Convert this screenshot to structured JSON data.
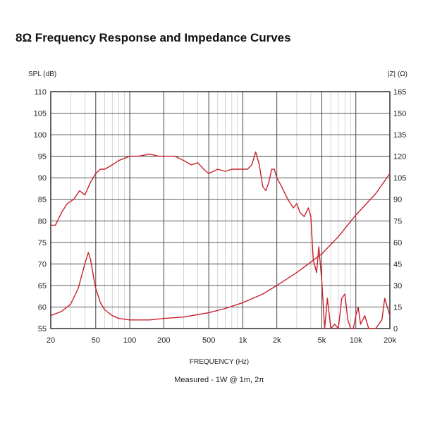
{
  "chart_data": {
    "type": "line",
    "title": "8Ω Frequency Response and Impedance Curves",
    "ylabel_left": "SPL (dB)",
    "ylabel_right": "|Z| (Ω)",
    "xlabel": "FREQUENCY (Hz)",
    "subtitle": "Measured - 1W @ 1m, 2π",
    "x_scale": "log",
    "xlim": [
      20,
      20000
    ],
    "ylim_left": [
      55,
      110
    ],
    "ylim_right": [
      0,
      165
    ],
    "x_ticks": [
      20,
      50,
      100,
      200,
      500,
      1000,
      2000,
      5000,
      10000,
      20000
    ],
    "x_tick_labels": [
      "20",
      "50",
      "100",
      "200",
      "500",
      "1k",
      "2k",
      "5k",
      "10k",
      "20k"
    ],
    "y_left_ticks": [
      110,
      105,
      100,
      95,
      90,
      85,
      80,
      75,
      70,
      65,
      60,
      55
    ],
    "y_right_ticks": [
      165,
      150,
      135,
      120,
      105,
      90,
      75,
      60,
      45,
      30,
      15,
      0
    ],
    "grid": true,
    "line_color": "#c8202c",
    "series": [
      {
        "axis": "left",
        "x": [
          20,
          22,
          25,
          28,
          32,
          36,
          40,
          45,
          50,
          55,
          60,
          70,
          80,
          100,
          120,
          150,
          180,
          200,
          250,
          300,
          350,
          400,
          450,
          500,
          550,
          600,
          700,
          800,
          1000,
          1100,
          1200,
          1300,
          1400,
          1500,
          1600,
          1700,
          1800,
          1900,
          2000,
          2200,
          2500,
          2800,
          3000,
          3200,
          3500,
          3800,
          4000,
          4200,
          4500,
          4700,
          5000,
          5300,
          5600,
          6000,
          6500,
          7000,
          7500,
          8000,
          8500,
          9000,
          9500,
          10000,
          10500,
          11000,
          12000,
          13000,
          15000,
          17000,
          18000,
          19000,
          20000
        ],
        "values": [
          79,
          79,
          82,
          84,
          85,
          87,
          86,
          89,
          91,
          92,
          92,
          93,
          94,
          95,
          95,
          95.5,
          95,
          95,
          95,
          94,
          93,
          93.5,
          92,
          91,
          91.5,
          92,
          91.5,
          92,
          92,
          92,
          93,
          96,
          93,
          88,
          87,
          89,
          92,
          92,
          90,
          88,
          85,
          83,
          84,
          82,
          81,
          83,
          81,
          71,
          68,
          74,
          66,
          55,
          62,
          55,
          56,
          55,
          62,
          63,
          57,
          55,
          55,
          58,
          60,
          56,
          58,
          55,
          55,
          57,
          62,
          60,
          58
        ]
      },
      {
        "axis": "right",
        "x": [
          20,
          25,
          30,
          35,
          40,
          43,
          45,
          48,
          50,
          55,
          60,
          70,
          80,
          100,
          150,
          200,
          300,
          500,
          700,
          1000,
          1500,
          2000,
          3000,
          5000,
          7000,
          10000,
          15000,
          20000
        ],
        "values": [
          9,
          12,
          17,
          28,
          45,
          53,
          48,
          35,
          28,
          18,
          13,
          9,
          7,
          6,
          6,
          7,
          8,
          11,
          14,
          18,
          24,
          30,
          39,
          52,
          64,
          79,
          94,
          108
        ]
      }
    ]
  }
}
